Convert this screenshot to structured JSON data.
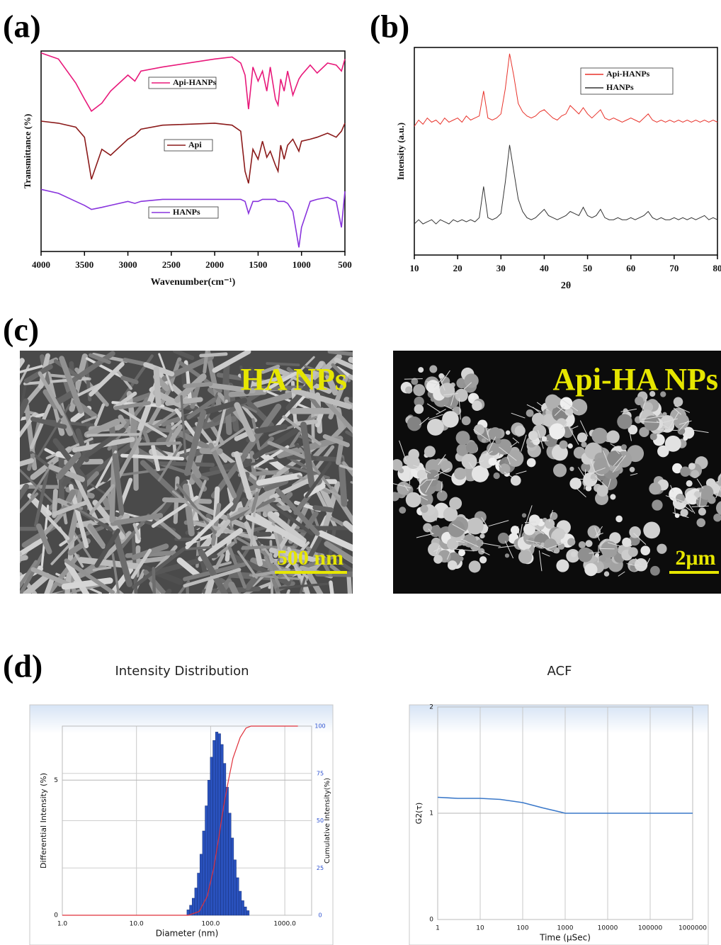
{
  "chart_data": [
    {
      "type": "line",
      "panel_label": "(a)",
      "x_label": "Wavenumber(cm⁻¹)",
      "y_label": "Transmittance (%)",
      "x": [
        4000,
        3800,
        3600,
        3500,
        3420,
        3300,
        3200,
        3000,
        2920,
        2850,
        2600,
        2000,
        1800,
        1700,
        1650,
        1610,
        1560,
        1500,
        1450,
        1400,
        1360,
        1300,
        1270,
        1240,
        1200,
        1160,
        1100,
        1030,
        1000,
        900,
        820,
        700,
        600,
        540,
        500
      ],
      "xlim": [
        4000,
        500
      ],
      "xticks": [
        4000,
        3500,
        3000,
        2500,
        2000,
        1500,
        1000,
        500
      ],
      "ylim": [
        0,
        100
      ],
      "series": [
        {
          "name": "Api-HANPs",
          "color": "#e8187a",
          "values": [
            99,
            96,
            84,
            76,
            70,
            74,
            80,
            88,
            85,
            90,
            92,
            96,
            97,
            94,
            88,
            71,
            92,
            85,
            90,
            80,
            92,
            76,
            73,
            86,
            80,
            90,
            78,
            86,
            88,
            93,
            89,
            94,
            93,
            90,
            96
          ]
        },
        {
          "name": "Api",
          "color": "#8b1a1a",
          "values": [
            65,
            64,
            62,
            57,
            36,
            51,
            48,
            56,
            58,
            61,
            63,
            64,
            63,
            60,
            40,
            34,
            51,
            46,
            55,
            47,
            50,
            43,
            40,
            53,
            46,
            53,
            56,
            50,
            55,
            56,
            57,
            59,
            57,
            60,
            64
          ]
        },
        {
          "name": "HANPs",
          "color": "#8833dd",
          "values": [
            31,
            29,
            25,
            23,
            21,
            22,
            23,
            25,
            24,
            25,
            26,
            26,
            26,
            26,
            25,
            19,
            25,
            25,
            26,
            26,
            26,
            26,
            25,
            25,
            25,
            24,
            20,
            2,
            12,
            25,
            26,
            27,
            25,
            12,
            30
          ]
        }
      ]
    },
    {
      "type": "line",
      "panel_label": "(b)",
      "x_label": "2θ",
      "y_label": "Intensity (a.u.)",
      "x": [
        10,
        11,
        12,
        13,
        14,
        15,
        16,
        17,
        18,
        19,
        20,
        21,
        22,
        23,
        24,
        25,
        26,
        27,
        28,
        29,
        30,
        31,
        32,
        33,
        34,
        35,
        36,
        37,
        38,
        39,
        40,
        41,
        42,
        43,
        44,
        45,
        46,
        47,
        48,
        49,
        50,
        51,
        52,
        53,
        54,
        55,
        56,
        57,
        58,
        59,
        60,
        61,
        62,
        63,
        64,
        65,
        66,
        67,
        68,
        69,
        70,
        71,
        72,
        73,
        74,
        75,
        76,
        77,
        78,
        79,
        80
      ],
      "xlim": [
        10,
        80
      ],
      "xticks": [
        10,
        20,
        30,
        40,
        50,
        60,
        70,
        80
      ],
      "ylim": [
        0,
        100
      ],
      "series": [
        {
          "name": "Api-HANPs",
          "color": "#e8322a",
          "values": [
            62,
            65,
            63,
            66,
            64,
            65,
            63,
            66,
            64,
            65,
            66,
            64,
            67,
            65,
            66,
            67,
            79,
            66,
            65,
            66,
            68,
            80,
            97,
            86,
            73,
            69,
            67,
            66,
            67,
            69,
            70,
            68,
            66,
            65,
            67,
            68,
            72,
            70,
            68,
            71,
            68,
            66,
            68,
            70,
            66,
            65,
            66,
            65,
            64,
            65,
            66,
            65,
            64,
            66,
            68,
            65,
            64,
            65,
            64,
            65,
            64,
            65,
            64,
            65,
            64,
            65,
            64,
            65,
            64,
            65,
            64
          ]
        },
        {
          "name": "HANPs",
          "color": "#333333",
          "values": [
            15,
            17,
            15,
            16,
            17,
            15,
            17,
            16,
            15,
            17,
            16,
            17,
            16,
            17,
            16,
            18,
            33,
            18,
            17,
            18,
            20,
            35,
            53,
            40,
            27,
            21,
            18,
            17,
            18,
            20,
            22,
            19,
            18,
            17,
            18,
            19,
            21,
            20,
            19,
            23,
            19,
            18,
            19,
            22,
            18,
            17,
            17,
            18,
            17,
            17,
            18,
            17,
            18,
            19,
            21,
            18,
            17,
            18,
            17,
            17,
            18,
            17,
            18,
            17,
            18,
            17,
            18,
            19,
            17,
            18,
            17
          ]
        }
      ]
    },
    {
      "type": "histogram",
      "panel_label": "(d)",
      "title": "Intensity Distribution",
      "x_label": "Diameter (nm)",
      "y_label": "Differential Intensity (%)",
      "y2_label": "Cumulative Intensity(%)",
      "x_scale": "log",
      "bins": [
        47.86,
        51.88,
        56.23,
        60.95,
        66.07,
        71.61,
        77.62,
        84.14,
        91.2,
        98.86,
        107.15,
        116.14,
        125.89,
        136.46,
        147.91,
        160.33,
        173.78,
        188.36,
        204.17,
        221.31,
        239.88,
        260.02,
        281.84,
        305.49,
        331.13
      ],
      "values": [
        0.2,
        0.37,
        0.63,
        1.01,
        1.56,
        2.26,
        3.12,
        4.05,
        5.0,
        5.85,
        6.47,
        6.78,
        6.72,
        6.32,
        5.62,
        4.74,
        3.78,
        2.86,
        2.05,
        1.39,
        0.89,
        0.54,
        0.31,
        0.17
      ],
      "color": "#2a52be",
      "line": {
        "axis": "y2",
        "color": "#e0303a",
        "x": [
          1,
          50,
          70,
          90,
          110,
          130,
          150,
          175,
          200,
          250,
          300,
          350,
          1500
        ],
        "values": [
          0,
          0,
          2,
          10,
          25,
          42,
          58,
          72,
          83,
          94,
          99,
          100,
          100
        ]
      },
      "xlim": [
        1,
        2300
      ],
      "xticks": [
        {
          "value": 1,
          "label": "1.0"
        },
        {
          "value": 10,
          "label": "10.0"
        },
        {
          "value": 100,
          "label": "100.0"
        },
        {
          "value": 1000,
          "label": "1000.0"
        }
      ],
      "ylim": [
        0,
        7
      ],
      "yticks": [
        0,
        5
      ],
      "y2lim": [
        0,
        100
      ],
      "y2ticks": [
        0,
        25,
        50,
        75,
        100
      ],
      "grid": true
    },
    {
      "type": "line",
      "title": "ACF",
      "x_label": "Time (μSec)",
      "y_label": "G2(τ)",
      "x_scale": "log",
      "x": [
        1,
        3,
        10,
        30,
        100,
        300,
        800,
        1000,
        10000,
        100000,
        1000000
      ],
      "values": [
        1.15,
        1.14,
        1.14,
        1.13,
        1.1,
        1.05,
        1.01,
        1.0,
        1.0,
        1.0,
        1.0
      ],
      "color": "#3a78c9",
      "xlim": [
        1,
        1000000
      ],
      "xticks": [
        1,
        10,
        100,
        1000,
        10000,
        100000,
        1000000
      ],
      "ylim": [
        0,
        2
      ],
      "yticks": [
        0,
        1,
        2
      ],
      "grid": true
    }
  ],
  "images": {
    "panel_label": "(c)",
    "items": [
      {
        "label": "HA NPs",
        "scale_bar": "500 nm"
      },
      {
        "label": "Api-HA NPs",
        "scale_bar": "2μm"
      }
    ]
  }
}
